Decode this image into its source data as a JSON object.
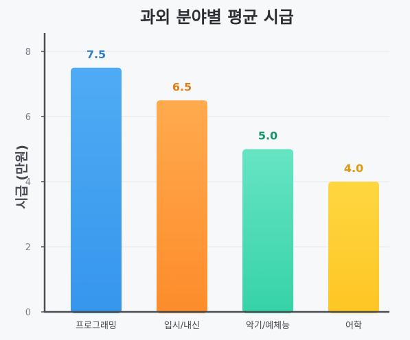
{
  "chart_data": {
    "type": "bar",
    "title": "과외 분야별 평균 시급",
    "xlabel": "",
    "ylabel": "시급 (만원)",
    "categories": [
      "프로그래밍",
      "입시/내신",
      "악기/예체능",
      "어학"
    ],
    "values": [
      7.5,
      6.5,
      5.0,
      4.0
    ],
    "value_labels": [
      "7.5",
      "6.5",
      "5.0",
      "4.0"
    ],
    "ylim": [
      0,
      8.5
    ],
    "yticks": [
      "0",
      "2",
      "4",
      "6",
      "8"
    ],
    "grid": true,
    "legend": "none",
    "colors": [
      {
        "top": "#4fabf4",
        "bottom": "#3696ec",
        "label": "#2f7fc9"
      },
      {
        "top": "#ffaa4e",
        "bottom": "#fd8c2b",
        "label": "#e07f17"
      },
      {
        "top": "#67e4c3",
        "bottom": "#36d3a6",
        "label": "#15946e"
      },
      {
        "top": "#ffd640",
        "bottom": "#fdc624",
        "label": "#e0960d"
      }
    ]
  }
}
